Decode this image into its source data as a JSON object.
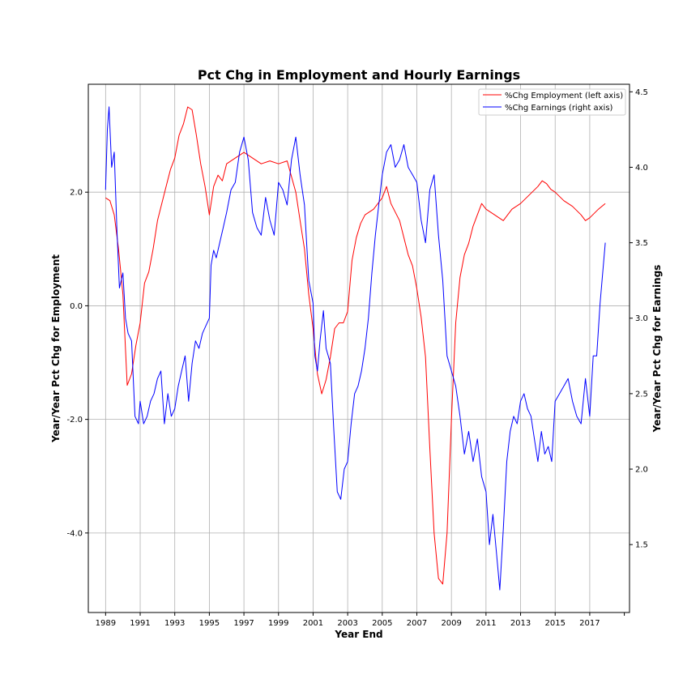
{
  "chart_data": {
    "type": "line",
    "title": "Pct Chg in Employment and Hourly Earnings",
    "xlabel": "Year End",
    "ylabel_left": "Year/Year Pct Chg for Employment",
    "ylabel_right": "Year/Year Pct Chg for Earnings",
    "x_ticks": [
      "1989",
      "1991",
      "1993",
      "1995",
      "1997",
      "1999",
      "2001",
      "2003",
      "2005",
      "2007",
      "2009",
      "2011",
      "2013",
      "2015",
      "2017"
    ],
    "xlim": [
      1988.0,
      2019.3
    ],
    "ylim_left": [
      -5.4,
      3.9
    ],
    "ylim_right": [
      1.05,
      4.55
    ],
    "y_ticks_left": [
      "2.0",
      "0.0",
      "-2.0",
      "-4.0"
    ],
    "y_ticks_right": [
      "4.5",
      "4.0",
      "3.5",
      "3.0",
      "2.5",
      "2.0",
      "1.5"
    ],
    "grid": true,
    "legend_position": "upper-right",
    "series": [
      {
        "name": "%Chg Employment (left axis)",
        "axis": "left",
        "color": "#ff0000",
        "x": [
          1989.0,
          1989.25,
          1989.5,
          1989.75,
          1990.0,
          1990.25,
          1990.5,
          1990.75,
          1991.0,
          1991.25,
          1991.5,
          1991.75,
          1992.0,
          1992.25,
          1992.5,
          1992.75,
          1993.0,
          1993.25,
          1993.5,
          1993.75,
          1994.0,
          1994.25,
          1994.5,
          1994.75,
          1995.0,
          1995.25,
          1995.5,
          1995.75,
          1996.0,
          1996.5,
          1997.0,
          1997.5,
          1998.0,
          1998.5,
          1999.0,
          1999.5,
          2000.0,
          2000.25,
          2000.5,
          2000.75,
          2001.0,
          2001.25,
          2001.5,
          2001.75,
          2002.0,
          2002.25,
          2002.5,
          2002.75,
          2003.0,
          2003.25,
          2003.5,
          2003.75,
          2004.0,
          2004.5,
          2005.0,
          2005.25,
          2005.5,
          2005.75,
          2006.0,
          2006.25,
          2006.5,
          2006.75,
          2007.0,
          2007.25,
          2007.5,
          2007.75,
          2008.0,
          2008.25,
          2008.5,
          2008.75,
          2009.0,
          2009.25,
          2009.5,
          2009.75,
          2010.0,
          2010.25,
          2010.5,
          2010.75,
          2011.0,
          2011.25,
          2011.5,
          2011.75,
          2012.0,
          2012.5,
          2013.0,
          2013.5,
          2014.0,
          2014.25,
          2014.5,
          2014.75,
          2015.0,
          2015.5,
          2016.0,
          2016.5,
          2016.75,
          2017.0,
          2017.5,
          2017.9
        ],
        "values": [
          1.9,
          1.85,
          1.6,
          1.0,
          0.2,
          -1.4,
          -1.2,
          -0.7,
          -0.3,
          0.4,
          0.6,
          1.0,
          1.5,
          1.8,
          2.1,
          2.4,
          2.6,
          3.0,
          3.2,
          3.5,
          3.45,
          3.0,
          2.5,
          2.1,
          1.6,
          2.1,
          2.3,
          2.2,
          2.5,
          2.6,
          2.7,
          2.6,
          2.5,
          2.55,
          2.5,
          2.55,
          2.0,
          1.5,
          1.0,
          0.2,
          -0.4,
          -1.2,
          -1.55,
          -1.3,
          -0.9,
          -0.4,
          -0.3,
          -0.3,
          -0.1,
          0.8,
          1.2,
          1.45,
          1.6,
          1.7,
          1.9,
          2.1,
          1.8,
          1.65,
          1.5,
          1.2,
          0.9,
          0.7,
          0.3,
          -0.2,
          -0.9,
          -2.5,
          -4.0,
          -4.8,
          -4.9,
          -4.0,
          -2.0,
          -0.3,
          0.5,
          0.9,
          1.1,
          1.4,
          1.6,
          1.8,
          1.7,
          1.65,
          1.6,
          1.55,
          1.5,
          1.7,
          1.8,
          1.95,
          2.1,
          2.2,
          2.15,
          2.05,
          2.0,
          1.85,
          1.75,
          1.6,
          1.5,
          1.55,
          1.7,
          1.8
        ]
      },
      {
        "name": "%Chg Earnings (right axis)",
        "axis": "right",
        "color": "#0000ff",
        "x": [
          1989.0,
          1989.1,
          1989.2,
          1989.35,
          1989.5,
          1989.65,
          1989.8,
          1990.0,
          1990.15,
          1990.3,
          1990.5,
          1990.7,
          1990.9,
          1991.0,
          1991.2,
          1991.4,
          1991.6,
          1991.8,
          1992.0,
          1992.2,
          1992.4,
          1992.6,
          1992.8,
          1993.0,
          1993.2,
          1993.4,
          1993.6,
          1993.8,
          1994.0,
          1994.2,
          1994.4,
          1994.6,
          1994.8,
          1995.0,
          1995.1,
          1995.25,
          1995.4,
          1995.6,
          1995.8,
          1996.0,
          1996.25,
          1996.5,
          1996.75,
          1997.0,
          1997.25,
          1997.5,
          1997.75,
          1998.0,
          1998.25,
          1998.5,
          1998.75,
          1999.0,
          1999.25,
          1999.5,
          1999.75,
          2000.0,
          2000.25,
          2000.5,
          2000.75,
          2001.0,
          2001.1,
          2001.25,
          2001.4,
          2001.6,
          2001.75,
          2002.0,
          2002.2,
          2002.4,
          2002.6,
          2002.8,
          2003.0,
          2003.2,
          2003.4,
          2003.6,
          2003.8,
          2004.0,
          2004.2,
          2004.4,
          2004.6,
          2004.8,
          2005.0,
          2005.25,
          2005.5,
          2005.75,
          2006.0,
          2006.25,
          2006.5,
          2006.75,
          2007.0,
          2007.25,
          2007.5,
          2007.75,
          2008.0,
          2008.25,
          2008.5,
          2008.75,
          2009.0,
          2009.25,
          2009.5,
          2009.75,
          2010.0,
          2010.25,
          2010.5,
          2010.75,
          2011.0,
          2011.2,
          2011.4,
          2011.6,
          2011.8,
          2012.0,
          2012.2,
          2012.4,
          2012.6,
          2012.8,
          2013.0,
          2013.2,
          2013.4,
          2013.6,
          2013.8,
          2014.0,
          2014.2,
          2014.4,
          2014.6,
          2014.8,
          2015.0,
          2015.25,
          2015.5,
          2015.75,
          2016.0,
          2016.25,
          2016.5,
          2016.75,
          2017.0,
          2017.2,
          2017.4,
          2017.6,
          2017.9
        ],
        "values": [
          3.85,
          4.25,
          4.4,
          4.0,
          4.1,
          3.6,
          3.2,
          3.3,
          3.0,
          2.9,
          2.85,
          2.35,
          2.3,
          2.45,
          2.3,
          2.35,
          2.45,
          2.5,
          2.6,
          2.65,
          2.3,
          2.5,
          2.35,
          2.4,
          2.55,
          2.65,
          2.75,
          2.45,
          2.7,
          2.85,
          2.8,
          2.9,
          2.95,
          3.0,
          3.35,
          3.45,
          3.4,
          3.5,
          3.6,
          3.7,
          3.85,
          3.9,
          4.1,
          4.2,
          4.05,
          3.7,
          3.6,
          3.55,
          3.8,
          3.65,
          3.55,
          3.9,
          3.85,
          3.75,
          4.05,
          4.2,
          3.95,
          3.75,
          3.25,
          3.1,
          2.75,
          2.65,
          2.85,
          3.05,
          2.8,
          2.7,
          2.25,
          1.85,
          1.8,
          2.0,
          2.05,
          2.3,
          2.5,
          2.55,
          2.65,
          2.8,
          3.0,
          3.3,
          3.55,
          3.75,
          3.95,
          4.1,
          4.15,
          4.0,
          4.05,
          4.15,
          4.0,
          3.95,
          3.9,
          3.65,
          3.5,
          3.85,
          3.95,
          3.55,
          3.25,
          2.75,
          2.65,
          2.55,
          2.35,
          2.1,
          2.25,
          2.05,
          2.2,
          1.95,
          1.85,
          1.5,
          1.7,
          1.45,
          1.2,
          1.6,
          2.05,
          2.25,
          2.35,
          2.3,
          2.45,
          2.5,
          2.4,
          2.35,
          2.2,
          2.05,
          2.25,
          2.1,
          2.15,
          2.05,
          2.45,
          2.5,
          2.55,
          2.6,
          2.45,
          2.35,
          2.3,
          2.6,
          2.35,
          2.75,
          2.75,
          3.1,
          3.5
        ]
      }
    ]
  }
}
